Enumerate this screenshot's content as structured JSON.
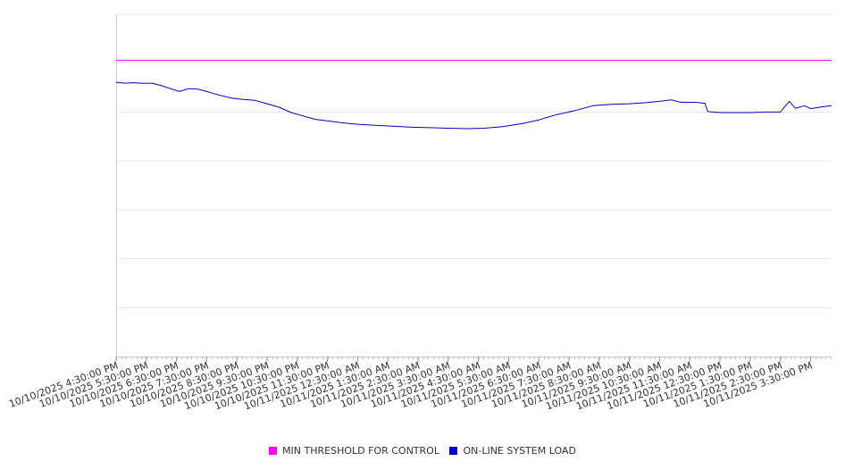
{
  "chart_data": {
    "type": "line",
    "title": "",
    "xlabel": "",
    "ylabel": "",
    "y_tick_labels_visible": false,
    "gridlines": 7,
    "x_tick_labels": [
      "10/10/2025 4:30:00 PM",
      "10/10/2025 5:30:00 PM",
      "10/10/2025 6:30:00 PM",
      "10/10/2025 7:30:00 PM",
      "10/10/2025 8:30:00 PM",
      "10/10/2025 9:30:00 PM",
      "10/10/2025 10:30:00 PM",
      "10/10/2025 11:30:00 PM",
      "10/11/2025 12:30:00 AM",
      "10/11/2025 1:30:00 AM",
      "10/11/2025 2:30:00 AM",
      "10/11/2025 3:30:00 AM",
      "10/11/2025 4:30:00 AM",
      "10/11/2025 5:30:00 AM",
      "10/11/2025 6:30:00 AM",
      "10/11/2025 7:30:00 AM",
      "10/11/2025 8:30:00 AM",
      "10/11/2025 9:30:00 AM",
      "10/11/2025 10:30:00 AM",
      "10/11/2025 11:30:00 AM",
      "10/11/2025 12:30:00 PM",
      "10/11/2025 1:30:00 PM",
      "10/11/2025 2:30:00 PM",
      "10/11/2025 3:30:00 PM"
    ],
    "x_range_hours": [
      0,
      23.7
    ],
    "ylim": [
      0,
      7
    ],
    "series": [
      {
        "name": "MIN THRESHOLD FOR CONTROL",
        "color": "#ff00ff",
        "points": [
          [
            0,
            6.06
          ],
          [
            23.7,
            6.06
          ]
        ]
      },
      {
        "name": "ON-LINE SYSTEM LOAD",
        "color": "#0000cc",
        "points": [
          [
            0,
            5.61
          ],
          [
            0.3,
            5.59
          ],
          [
            0.55,
            5.6
          ],
          [
            0.85,
            5.59
          ],
          [
            1.2,
            5.59
          ],
          [
            1.5,
            5.54
          ],
          [
            1.8,
            5.48
          ],
          [
            2.1,
            5.42
          ],
          [
            2.4,
            5.48
          ],
          [
            2.7,
            5.47
          ],
          [
            3.0,
            5.42
          ],
          [
            3.4,
            5.35
          ],
          [
            3.8,
            5.29
          ],
          [
            4.2,
            5.26
          ],
          [
            4.6,
            5.24
          ],
          [
            5.0,
            5.17
          ],
          [
            5.4,
            5.1
          ],
          [
            5.8,
            4.99
          ],
          [
            6.2,
            4.92
          ],
          [
            6.6,
            4.85
          ],
          [
            7.0,
            4.82
          ],
          [
            7.5,
            4.78
          ],
          [
            8.0,
            4.75
          ],
          [
            8.6,
            4.73
          ],
          [
            9.2,
            4.71
          ],
          [
            9.8,
            4.69
          ],
          [
            10.4,
            4.68
          ],
          [
            11.0,
            4.67
          ],
          [
            11.6,
            4.66
          ],
          [
            12.2,
            4.67
          ],
          [
            12.8,
            4.7
          ],
          [
            13.4,
            4.76
          ],
          [
            14.0,
            4.84
          ],
          [
            14.6,
            4.95
          ],
          [
            15.2,
            5.03
          ],
          [
            15.8,
            5.13
          ],
          [
            16.4,
            5.16
          ],
          [
            17.0,
            5.17
          ],
          [
            17.5,
            5.19
          ],
          [
            18.0,
            5.22
          ],
          [
            18.4,
            5.25
          ],
          [
            18.7,
            5.2
          ],
          [
            19.2,
            5.2
          ],
          [
            19.5,
            5.18
          ],
          [
            19.6,
            5.01
          ],
          [
            20.0,
            4.99
          ],
          [
            20.5,
            4.99
          ],
          [
            21.0,
            4.99
          ],
          [
            21.5,
            5.0
          ],
          [
            22.0,
            5.0
          ],
          [
            22.3,
            5.22
          ],
          [
            22.5,
            5.08
          ],
          [
            22.8,
            5.13
          ],
          [
            23.0,
            5.07
          ],
          [
            23.3,
            5.1
          ],
          [
            23.7,
            5.13
          ]
        ]
      }
    ],
    "legend": {
      "position": "bottom",
      "items": [
        {
          "label": "MIN THRESHOLD FOR CONTROL",
          "color": "#ff00ff"
        },
        {
          "label": "ON-LINE SYSTEM LOAD",
          "color": "#0000cc"
        }
      ]
    }
  }
}
